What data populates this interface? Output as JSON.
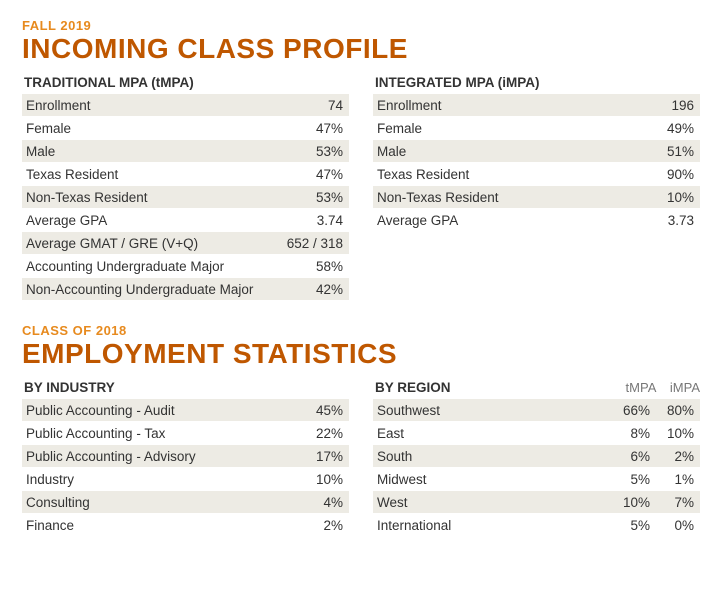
{
  "section1": {
    "eyebrow": "FALL 2019",
    "title": "INCOMING CLASS PROFILE",
    "left": {
      "header": "TRADITIONAL MPA (tMPA)",
      "rows": [
        {
          "label": "Enrollment",
          "value": "74"
        },
        {
          "label": "Female",
          "value": "47%"
        },
        {
          "label": "Male",
          "value": "53%"
        },
        {
          "label": "Texas Resident",
          "value": "47%"
        },
        {
          "label": "Non-Texas Resident",
          "value": "53%"
        },
        {
          "label": "Average GPA",
          "value": "3.74"
        },
        {
          "label": "Average GMAT / GRE (V+Q)",
          "value": "652 / 318"
        },
        {
          "label": "Accounting Undergraduate Major",
          "value": "58%"
        },
        {
          "label": "Non-Accounting Undergraduate Major",
          "value": "42%"
        }
      ]
    },
    "right": {
      "header": "INTEGRATED MPA (iMPA)",
      "rows": [
        {
          "label": "Enrollment",
          "value": "196"
        },
        {
          "label": "Female",
          "value": "49%"
        },
        {
          "label": "Male",
          "value": "51%"
        },
        {
          "label": "Texas Resident",
          "value": "90%"
        },
        {
          "label": "Non-Texas Resident",
          "value": "10%"
        },
        {
          "label": "Average GPA",
          "value": "3.73"
        }
      ]
    }
  },
  "section2": {
    "eyebrow": "CLASS OF 2018",
    "title": "EMPLOYMENT STATISTICS",
    "left": {
      "header": "BY INDUSTRY",
      "rows": [
        {
          "label": "Public Accounting - Audit",
          "value": "45%"
        },
        {
          "label": "Public Accounting - Tax",
          "value": "22%"
        },
        {
          "label": "Public Accounting - Advisory",
          "value": "17%"
        },
        {
          "label": "Industry",
          "value": "10%"
        },
        {
          "label": "Consulting",
          "value": "4%"
        },
        {
          "label": "Finance",
          "value": "2%"
        }
      ]
    },
    "right": {
      "header": "BY REGION",
      "subcol1": "tMPA",
      "subcol2": "iMPA",
      "rows": [
        {
          "label": "Southwest",
          "v1": "66%",
          "v2": "80%"
        },
        {
          "label": "East",
          "v1": "8%",
          "v2": "10%"
        },
        {
          "label": "South",
          "v1": "6%",
          "v2": "2%"
        },
        {
          "label": "Midwest",
          "v1": "5%",
          "v2": "1%"
        },
        {
          "label": "West",
          "v1": "10%",
          "v2": "7%"
        },
        {
          "label": "International",
          "v1": "5%",
          "v2": "0%"
        }
      ]
    }
  },
  "colors": {
    "eyebrow": "#e78a1e",
    "title": "#bf5700",
    "row_odd_bg": "#edebe4",
    "row_even_bg": "#ffffff",
    "text": "#333333",
    "subcol_text": "#777777"
  },
  "typography": {
    "eyebrow_fontsize": 13,
    "title_fontsize": 28,
    "header_fontsize": 13.5,
    "cell_fontsize": 13.5
  }
}
